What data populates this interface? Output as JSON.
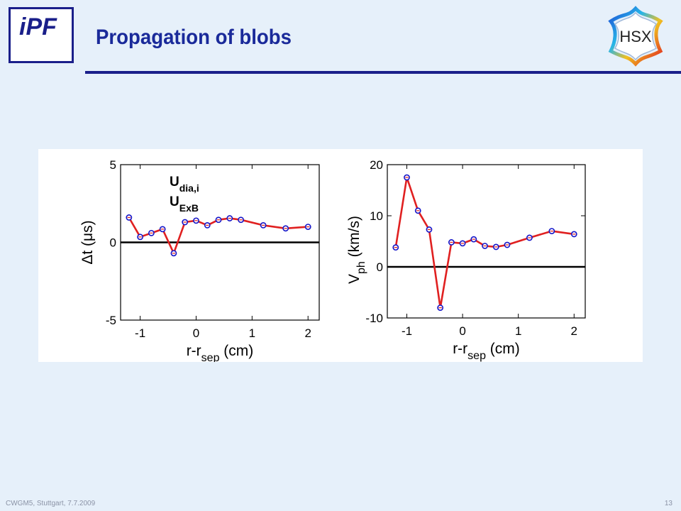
{
  "header": {
    "title": "Propagation of blobs",
    "logo_left_text": "iPF",
    "logo_right_text": "HSX"
  },
  "footer": {
    "left": "CWGM5, Stuttgart, 7.7.2009",
    "right": "13"
  },
  "colors": {
    "accent": "#1a1f8a",
    "background": "#e6f0fa",
    "series_line": "#e02020",
    "marker": "#1515c8"
  },
  "chart_data": [
    {
      "type": "line",
      "xlabel_main": "r-r",
      "xlabel_sub": "sep",
      "xlabel_unit": " (cm)",
      "ylabel": "Δt (μs)",
      "xlim": [
        -1.35,
        2.2
      ],
      "ylim": [
        -5,
        5
      ],
      "xticks": [
        "-1",
        "0",
        "1",
        "2"
      ],
      "xtick_values": [
        -1,
        0,
        1,
        2
      ],
      "yticks": [
        "-5",
        "0",
        "5"
      ],
      "ytick_values": [
        -5,
        0,
        5
      ],
      "annotations": [
        {
          "main": "U",
          "sub": "dia,i"
        },
        {
          "main": "U",
          "sub": "ExB"
        }
      ],
      "zero_line": true,
      "series": [
        {
          "x": [
            -1.2,
            -1.0,
            -0.8,
            -0.6,
            -0.4,
            -0.2,
            0.0,
            0.2,
            0.4,
            0.6,
            0.8,
            1.2,
            1.6,
            2.0
          ],
          "values": [
            1.6,
            0.35,
            0.6,
            0.85,
            -0.7,
            1.3,
            1.4,
            1.1,
            1.45,
            1.55,
            1.45,
            1.1,
            0.9,
            1.0
          ]
        }
      ]
    },
    {
      "type": "line",
      "xlabel_main": "r-r",
      "xlabel_sub": "sep",
      "xlabel_unit": " (cm)",
      "ylabel_main": "V",
      "ylabel_sub": "ph",
      "ylabel_unit": " (km/s)",
      "xlim": [
        -1.35,
        2.2
      ],
      "ylim": [
        -10,
        20
      ],
      "xticks": [
        "-1",
        "0",
        "1",
        "2"
      ],
      "xtick_values": [
        -1,
        0,
        1,
        2
      ],
      "yticks": [
        "-10",
        "0",
        "10",
        "20"
      ],
      "ytick_values": [
        -10,
        0,
        10,
        20
      ],
      "zero_line": true,
      "series": [
        {
          "x": [
            -1.2,
            -1.0,
            -0.8,
            -0.6,
            -0.4,
            -0.2,
            0.0,
            0.2,
            0.4,
            0.6,
            0.8,
            1.2,
            1.6,
            2.0
          ],
          "values": [
            3.8,
            17.5,
            11.0,
            7.3,
            -8.0,
            4.8,
            4.6,
            5.4,
            4.1,
            3.9,
            4.3,
            5.7,
            7.0,
            6.4
          ]
        }
      ]
    }
  ]
}
